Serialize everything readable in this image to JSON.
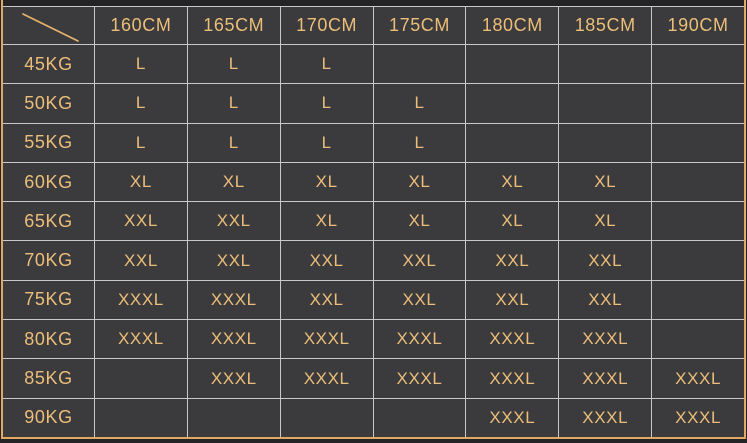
{
  "colors": {
    "page_background": "#242427",
    "cell_background": "#3b3b3d",
    "grid_line": "#c9c9c9",
    "gold_text": "#ecbe79",
    "gold_border": "#e2a963"
  },
  "table": {
    "corner_icon": "diagonal-line-icon",
    "columns": [
      "160CM",
      "165CM",
      "170CM",
      "175CM",
      "180CM",
      "185CM",
      "190CM"
    ],
    "rows": [
      {
        "weight": "45KG",
        "sizes": [
          "L",
          "L",
          "L",
          "",
          "",
          "",
          ""
        ]
      },
      {
        "weight": "50KG",
        "sizes": [
          "L",
          "L",
          "L",
          "L",
          "",
          "",
          ""
        ]
      },
      {
        "weight": "55KG",
        "sizes": [
          "L",
          "L",
          "L",
          "L",
          "",
          "",
          ""
        ]
      },
      {
        "weight": "60KG",
        "sizes": [
          "XL",
          "XL",
          "XL",
          "XL",
          "XL",
          "XL",
          ""
        ]
      },
      {
        "weight": "65KG",
        "sizes": [
          "XXL",
          "XXL",
          "XL",
          "XL",
          "XL",
          "XL",
          ""
        ]
      },
      {
        "weight": "70KG",
        "sizes": [
          "XXL",
          "XXL",
          "XXL",
          "XXL",
          "XXL",
          "XXL",
          ""
        ]
      },
      {
        "weight": "75KG",
        "sizes": [
          "XXXL",
          "XXXL",
          "XXL",
          "XXL",
          "XXL",
          "XXL",
          ""
        ]
      },
      {
        "weight": "80KG",
        "sizes": [
          "XXXL",
          "XXXL",
          "XXXL",
          "XXXL",
          "XXXL",
          "XXXL",
          ""
        ]
      },
      {
        "weight": "85KG",
        "sizes": [
          "",
          "XXXL",
          "XXXL",
          "XXXL",
          "XXXL",
          "XXXL",
          "XXXL"
        ]
      },
      {
        "weight": "90KG",
        "sizes": [
          "",
          "",
          "",
          "",
          "XXXL",
          "XXXL",
          "XXXL"
        ]
      }
    ]
  },
  "chart_data": {
    "type": "table",
    "title": "",
    "corner_label": "",
    "column_headers": [
      "160CM",
      "165CM",
      "170CM",
      "175CM",
      "180CM",
      "185CM",
      "190CM"
    ],
    "row_headers": [
      "45KG",
      "50KG",
      "55KG",
      "60KG",
      "65KG",
      "70KG",
      "75KG",
      "80KG",
      "85KG",
      "90KG"
    ],
    "cells": [
      [
        "L",
        "L",
        "L",
        "",
        "",
        "",
        ""
      ],
      [
        "L",
        "L",
        "L",
        "L",
        "",
        "",
        ""
      ],
      [
        "L",
        "L",
        "L",
        "L",
        "",
        "",
        ""
      ],
      [
        "XL",
        "XL",
        "XL",
        "XL",
        "XL",
        "XL",
        ""
      ],
      [
        "XXL",
        "XXL",
        "XL",
        "XL",
        "XL",
        "XL",
        ""
      ],
      [
        "XXL",
        "XXL",
        "XXL",
        "XXL",
        "XXL",
        "XXL",
        ""
      ],
      [
        "XXXL",
        "XXXL",
        "XXL",
        "XXL",
        "XXL",
        "XXL",
        ""
      ],
      [
        "XXXL",
        "XXXL",
        "XXXL",
        "XXXL",
        "XXXL",
        "XXXL",
        ""
      ],
      [
        "",
        "XXXL",
        "XXXL",
        "XXXL",
        "XXXL",
        "XXXL",
        "XXXL"
      ],
      [
        "",
        "",
        "",
        "",
        "XXXL",
        "XXXL",
        "XXXL"
      ]
    ],
    "layout_hints": {
      "grid": true,
      "theme": "dark",
      "corner_has_diagonal_slash": true
    }
  }
}
